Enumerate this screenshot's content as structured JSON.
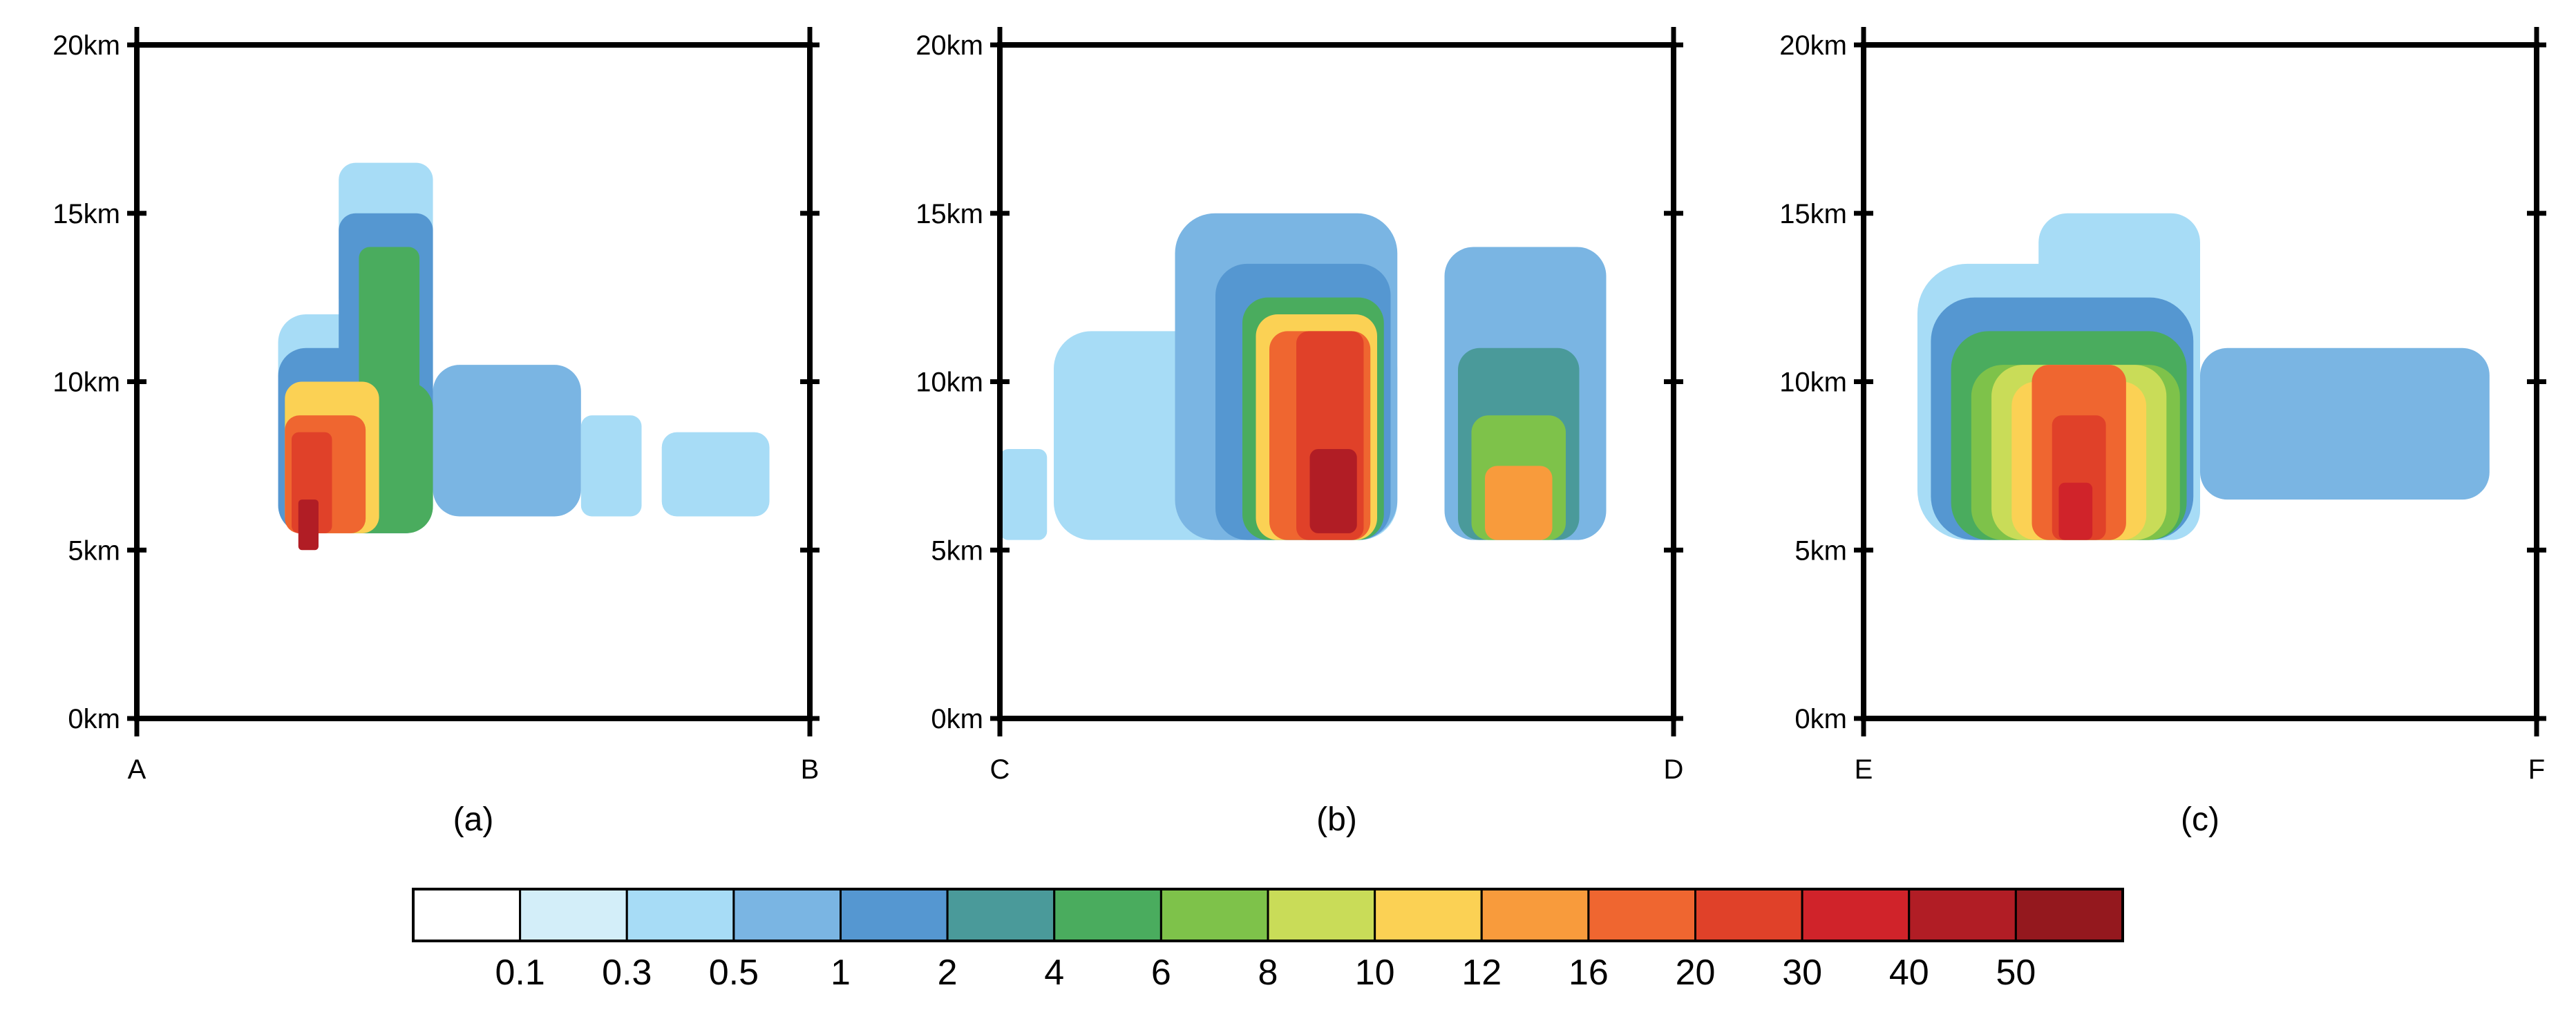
{
  "colors": {
    "levels": [
      "#ffffff",
      "#d3eef9",
      "#a7dcf6",
      "#7ab5e3",
      "#5597d1",
      "#4a9a9a",
      "#4aac5e",
      "#7ec24a",
      "#c9dc58",
      "#fbd154",
      "#f89b3c",
      "#ef6630",
      "#e04129",
      "#d0232a",
      "#b11d25",
      "#94181e"
    ],
    "frame": "#000000"
  },
  "colorbar": {
    "labels": [
      "0.1",
      "0.3",
      "0.5",
      "1",
      "2",
      "4",
      "6",
      "8",
      "10",
      "12",
      "16",
      "20",
      "30",
      "40",
      "50"
    ]
  },
  "chart_data": [
    {
      "type": "heatmap",
      "xlabel": "",
      "ylabel": "",
      "caption": "(a)",
      "x_endpoints": [
        "A",
        "B"
      ],
      "y_ticks": [
        "0km",
        "5km",
        "10km",
        "15km",
        "20km"
      ],
      "ylim": [
        0,
        20
      ],
      "xlim": [
        0,
        1
      ],
      "cells": [
        {
          "x": [
            0.21,
            0.44
          ],
          "y": [
            5.5,
            12.0
          ],
          "level": 2
        },
        {
          "x": [
            0.3,
            0.44
          ],
          "y": [
            12.0,
            16.5
          ],
          "level": 2
        },
        {
          "x": [
            0.44,
            0.66
          ],
          "y": [
            6.0,
            10.5
          ],
          "level": 3
        },
        {
          "x": [
            0.66,
            0.75
          ],
          "y": [
            6.0,
            9.0
          ],
          "level": 2
        },
        {
          "x": [
            0.78,
            0.94
          ],
          "y": [
            6.0,
            8.5
          ],
          "level": 2
        },
        {
          "x": [
            0.21,
            0.44
          ],
          "y": [
            5.5,
            11.0
          ],
          "level": 4
        },
        {
          "x": [
            0.3,
            0.44
          ],
          "y": [
            6.0,
            15.0
          ],
          "level": 4
        },
        {
          "x": [
            0.22,
            0.44
          ],
          "y": [
            5.5,
            10.0
          ],
          "level": 6
        },
        {
          "x": [
            0.33,
            0.42
          ],
          "y": [
            6.0,
            14.0
          ],
          "level": 6
        },
        {
          "x": [
            0.22,
            0.36
          ],
          "y": [
            5.5,
            10.0
          ],
          "level": 9
        },
        {
          "x": [
            0.22,
            0.34
          ],
          "y": [
            5.5,
            9.0
          ],
          "level": 11
        },
        {
          "x": [
            0.23,
            0.29
          ],
          "y": [
            5.5,
            8.5
          ],
          "level": 12
        },
        {
          "x": [
            0.24,
            0.27
          ],
          "y": [
            5.0,
            6.5
          ],
          "level": 14
        }
      ]
    },
    {
      "type": "heatmap",
      "xlabel": "",
      "ylabel": "",
      "caption": "(b)",
      "x_endpoints": [
        "C",
        "D"
      ],
      "y_ticks": [
        "0km",
        "5km",
        "10km",
        "15km",
        "20km"
      ],
      "ylim": [
        0,
        20
      ],
      "xlim": [
        0,
        1
      ],
      "cells": [
        {
          "x": [
            0.0,
            0.07
          ],
          "y": [
            5.3,
            8.0
          ],
          "level": 2
        },
        {
          "x": [
            0.08,
            0.59
          ],
          "y": [
            5.3,
            11.5
          ],
          "level": 2
        },
        {
          "x": [
            0.26,
            0.59
          ],
          "y": [
            5.3,
            15.0
          ],
          "level": 3
        },
        {
          "x": [
            0.66,
            0.9
          ],
          "y": [
            5.3,
            14.0
          ],
          "level": 3
        },
        {
          "x": [
            0.32,
            0.58
          ],
          "y": [
            5.3,
            13.5
          ],
          "level": 4
        },
        {
          "x": [
            0.68,
            0.86
          ],
          "y": [
            5.3,
            11.0
          ],
          "level": 5
        },
        {
          "x": [
            0.36,
            0.57
          ],
          "y": [
            5.3,
            12.5
          ],
          "level": 6
        },
        {
          "x": [
            0.7,
            0.84
          ],
          "y": [
            5.3,
            9.0
          ],
          "level": 7
        },
        {
          "x": [
            0.38,
            0.56
          ],
          "y": [
            5.3,
            12.0
          ],
          "level": 9
        },
        {
          "x": [
            0.72,
            0.82
          ],
          "y": [
            5.3,
            7.5
          ],
          "level": 10
        },
        {
          "x": [
            0.4,
            0.55
          ],
          "y": [
            5.3,
            11.5
          ],
          "level": 11
        },
        {
          "x": [
            0.44,
            0.54
          ],
          "y": [
            5.3,
            11.5
          ],
          "level": 12
        },
        {
          "x": [
            0.46,
            0.53
          ],
          "y": [
            5.5,
            8.0
          ],
          "level": 14
        }
      ]
    },
    {
      "type": "heatmap",
      "xlabel": "",
      "ylabel": "",
      "caption": "(c)",
      "x_endpoints": [
        "E",
        "F"
      ],
      "y_ticks": [
        "0km",
        "5km",
        "10km",
        "15km",
        "20km"
      ],
      "ylim": [
        0,
        20
      ],
      "xlim": [
        0,
        1
      ],
      "cells": [
        {
          "x": [
            0.08,
            0.5
          ],
          "y": [
            5.3,
            13.5
          ],
          "level": 2
        },
        {
          "x": [
            0.26,
            0.5
          ],
          "y": [
            5.3,
            15.0
          ],
          "level": 2
        },
        {
          "x": [
            0.5,
            0.93
          ],
          "y": [
            6.5,
            11.0
          ],
          "level": 3
        },
        {
          "x": [
            0.1,
            0.49
          ],
          "y": [
            5.3,
            12.5
          ],
          "level": 4
        },
        {
          "x": [
            0.13,
            0.48
          ],
          "y": [
            5.3,
            11.5
          ],
          "level": 6
        },
        {
          "x": [
            0.16,
            0.47
          ],
          "y": [
            5.3,
            10.5
          ],
          "level": 7
        },
        {
          "x": [
            0.19,
            0.45
          ],
          "y": [
            5.3,
            10.5
          ],
          "level": 8
        },
        {
          "x": [
            0.22,
            0.42
          ],
          "y": [
            5.3,
            10.0
          ],
          "level": 9
        },
        {
          "x": [
            0.25,
            0.39
          ],
          "y": [
            5.3,
            10.5
          ],
          "level": 11
        },
        {
          "x": [
            0.28,
            0.36
          ],
          "y": [
            5.3,
            9.0
          ],
          "level": 12
        },
        {
          "x": [
            0.29,
            0.34
          ],
          "y": [
            5.3,
            7.0
          ],
          "level": 13
        }
      ]
    }
  ]
}
